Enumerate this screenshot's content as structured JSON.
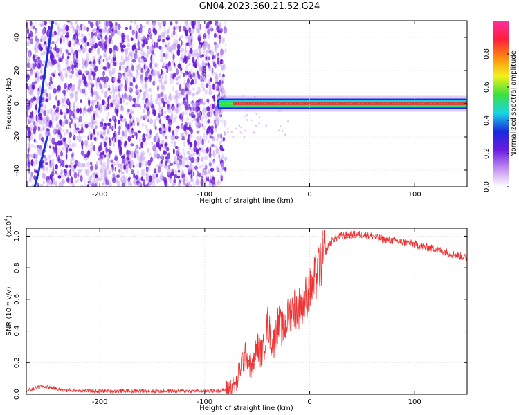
{
  "title": "GN04.2023.360.21.52.G24",
  "colors": {
    "snr_line": "#ee3333",
    "scatter_purple": "#6a1bd8",
    "scatter_light": "#c9a7f2",
    "streak_blue": "#1530d0",
    "band_red": "#ff1f3d",
    "band_green": "#3de03d",
    "band_cyan": "#20d0e0",
    "band_blue": "#1a2adf"
  },
  "chart_data": [
    {
      "type": "heatmap",
      "xlabel": "Height of straight line (km)",
      "ylabel": "Frequency (Hz)",
      "xlim": [
        -270,
        150
      ],
      "ylim": [
        -50,
        50
      ],
      "xticks": [
        -200,
        -100,
        0,
        100
      ],
      "xtick_labels": [
        "-200",
        "-100",
        "0",
        "100"
      ],
      "yticks": [
        -40,
        -20,
        0,
        20,
        40
      ],
      "ytick_labels": [
        "-40",
        "-20",
        "0",
        "20",
        "40"
      ],
      "colorbar": {
        "label": "Normalized spectral amplitude",
        "range": [
          0,
          1
        ],
        "ticks": [
          0.0,
          0.2,
          0.4,
          0.6,
          0.8
        ],
        "tick_labels": [
          "0.0",
          "0.2",
          "0.4",
          "0.6",
          "0.8"
        ],
        "colormap": [
          "#ffffff",
          "#c18df0",
          "#6a1be0",
          "#1a2adf",
          "#19d6e6",
          "#3de03d",
          "#f2f21a",
          "#ff8a10",
          "#ff1f3d",
          "#ff30a0"
        ]
      },
      "noise_region": {
        "x_range": [
          -270,
          -80
        ],
        "frequency_range": [
          -50,
          50
        ]
      },
      "signal_band": {
        "x_range": [
          -88,
          150
        ],
        "frequency_center": 0,
        "frequency_width": 3
      },
      "streaks": [
        {
          "x_start": -258,
          "x_end": -245,
          "y_start": -5,
          "y_end": 50
        },
        {
          "x_start": -262,
          "x_end": -250,
          "y_start": -50,
          "y_end": -20
        }
      ],
      "grid": true
    },
    {
      "type": "line",
      "xlabel": "Height of straight line (km)",
      "ylabel": "SNR (10 * v/v)",
      "y_multiplier_label": "(x10",
      "y_multiplier_exp": "4",
      "y_multiplier_close": ")",
      "xlim": [
        -270,
        150
      ],
      "ylim": [
        0,
        1.05
      ],
      "xticks": [
        -200,
        -100,
        0,
        100
      ],
      "xtick_labels": [
        "-200",
        "-100",
        "0",
        "100"
      ],
      "yticks": [
        0.0,
        0.2,
        0.4,
        0.6,
        0.8,
        1.0
      ],
      "ytick_labels": [
        "0.0",
        "0.2",
        "0.4",
        "0.6",
        "0.8",
        "1.0"
      ],
      "series": [
        {
          "x": [
            -270,
            -255,
            -245,
            -235,
            -200,
            -150,
            -100,
            -80,
            -70,
            -65,
            -60,
            -55,
            -50,
            -45,
            -40,
            -35,
            -30,
            -25,
            -20,
            -15,
            -10,
            -5,
            0,
            5,
            10,
            15,
            20,
            25,
            30,
            40,
            50,
            60,
            70,
            80,
            90,
            100,
            110,
            120,
            130,
            140,
            150
          ],
          "y": [
            0.02,
            0.05,
            0.04,
            0.025,
            0.02,
            0.02,
            0.02,
            0.025,
            0.06,
            0.2,
            0.25,
            0.15,
            0.3,
            0.25,
            0.45,
            0.3,
            0.45,
            0.4,
            0.5,
            0.55,
            0.55,
            0.6,
            0.65,
            0.72,
            0.82,
            0.9,
            0.96,
            0.99,
            1.0,
            1.01,
            1.01,
            1.0,
            0.98,
            0.97,
            0.96,
            0.95,
            0.93,
            0.92,
            0.9,
            0.88,
            0.86
          ]
        }
      ],
      "grid": true
    }
  ]
}
